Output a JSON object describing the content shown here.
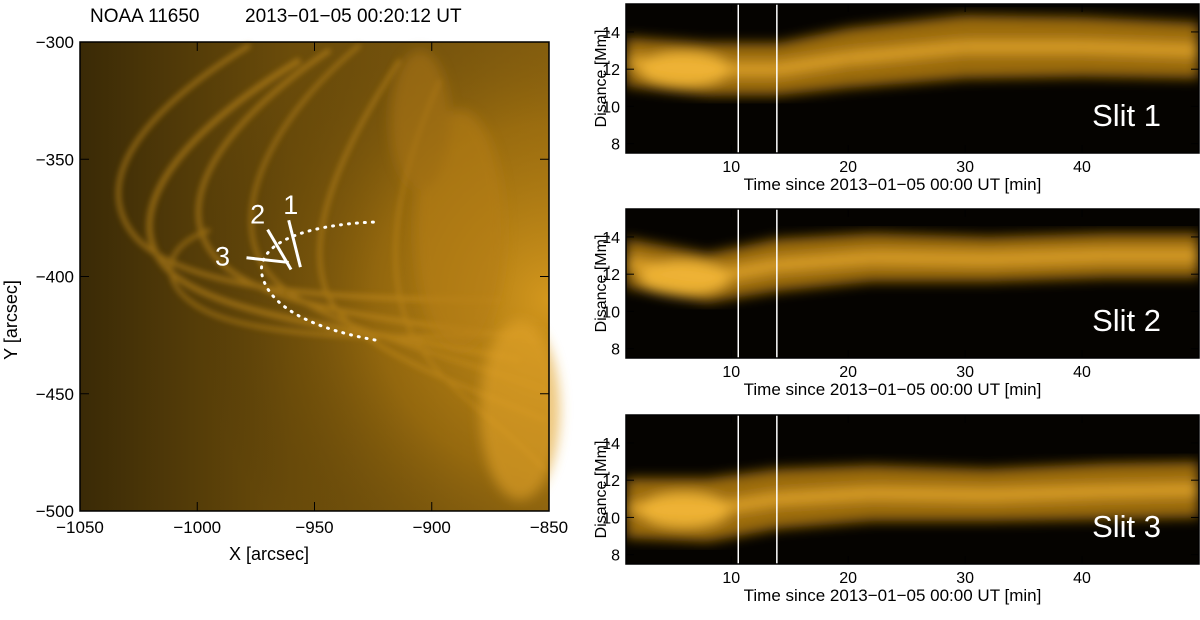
{
  "chart_data": [
    {
      "type": "image",
      "title": "NOAA 11650",
      "subtitle": "2013-01-05 00:20:12 UT",
      "xlabel": "X [arcsec]",
      "ylabel": "Y [arcsec]",
      "xlim": [
        -1050,
        -850
      ],
      "ylim": [
        -500,
        -300
      ],
      "xticks": [
        -1050,
        -1000,
        -950,
        -900,
        -850
      ],
      "yticks": [
        -500,
        -450,
        -400,
        -350,
        -300
      ],
      "slits": [
        {
          "label": "1",
          "x": [
            -961,
            -956
          ],
          "y": [
            -376,
            -396
          ]
        },
        {
          "label": "2",
          "x": [
            -970,
            -960
          ],
          "y": [
            -380,
            -397
          ]
        },
        {
          "label": "3",
          "x": [
            -979,
            -961
          ],
          "y": [
            -392,
            -394
          ]
        }
      ]
    },
    {
      "type": "heatmap",
      "label": "Slit 1",
      "xlabel": "Time since 2013-01-05 00:00 UT [min]",
      "ylabel": "Disance [Mm]",
      "xlim": [
        1,
        50
      ],
      "ylim": [
        7.5,
        15.5
      ],
      "xticks": [
        10,
        20,
        30,
        40
      ],
      "yticks": [
        8,
        10,
        12,
        14
      ],
      "markers_x": [
        10.6,
        13.9
      ]
    },
    {
      "type": "heatmap",
      "label": "Slit 2",
      "xlabel": "Time since 2013-01-05 00:00 UT [min]",
      "ylabel": "Disance [Mm]",
      "xlim": [
        1,
        50
      ],
      "ylim": [
        7.5,
        15.5
      ],
      "xticks": [
        10,
        20,
        30,
        40
      ],
      "yticks": [
        8,
        10,
        12,
        14
      ],
      "markers_x": [
        10.6,
        13.9
      ]
    },
    {
      "type": "heatmap",
      "label": "Slit 3",
      "xlabel": "Time since 2013-01-05 00:00 UT [min]",
      "ylabel": "Disance [Mm]",
      "xlim": [
        1,
        50
      ],
      "ylim": [
        7.5,
        15.5
      ],
      "xticks": [
        10,
        20,
        30,
        40
      ],
      "yticks": [
        8,
        10,
        12,
        14
      ],
      "markers_x": [
        10.6,
        13.9
      ]
    }
  ]
}
